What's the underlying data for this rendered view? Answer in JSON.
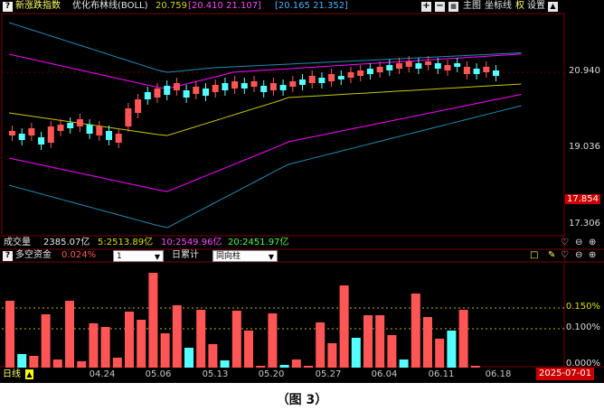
{
  "colors": {
    "up": "#ff5555",
    "down": "#54ffff",
    "upper_band": "#3aa0c8",
    "mid_band": "#c8c800",
    "lower_band": "#ff00ff",
    "outer_band": "#1e8cb4",
    "grid": "#7a0000",
    "yellow_grid": "#bbbb00",
    "highlight": "#cc0000"
  },
  "header": {
    "stock_name": "新涨跌指数",
    "indicator_name": "优化布林线(BOLL)",
    "val1": "20.759",
    "val2": "[20.410  21.107]",
    "val3": "[20.165  21.352]",
    "menu": {
      "main_chart": "主图",
      "axis": "坐标线",
      "right": "权",
      "settings": "设置"
    }
  },
  "price_axis": {
    "labels": [
      "20.940",
      "19.036",
      "17.306"
    ],
    "highlight": "17.854"
  },
  "volume_line": {
    "label": "成交量",
    "total": "2385.07亿",
    "ma5": "5:2513.89亿",
    "ma10": "10:2549.96亿",
    "ma20": "20:2451.97亿"
  },
  "indicator": {
    "name": "多空资金",
    "value": "0.024%",
    "select1": "1",
    "mode_label": "日累计",
    "select2": "同向柱",
    "axis_labels": [
      "0.150%",
      "0.100%",
      "0.000%"
    ]
  },
  "x_axis": {
    "period": "日线",
    "dates": [
      "04.24",
      "05.06",
      "05.13",
      "05.20",
      "05.27",
      "06.04",
      "06.11",
      "06.18"
    ],
    "current_date": "2025-07-01"
  },
  "caption": "（图 3）"
}
